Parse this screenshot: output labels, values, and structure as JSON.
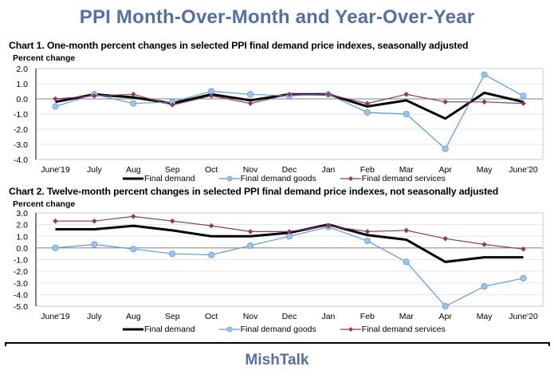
{
  "page": {
    "title": "PPI Month-Over-Month and Year-Over-Year",
    "footer": "MishTalk"
  },
  "colors": {
    "title": "#5470a3",
    "final_demand": "#000000",
    "final_demand_goods": "#5b9bd5",
    "final_demand_goods_marker": "#9dc3ef",
    "final_demand_services": "#8e3a63"
  },
  "chart_data": [
    {
      "type": "line",
      "title": "Chart 1. One-month percent changes in selected PPI final demand price indexes, seasonally adjusted",
      "xlabel": "",
      "ylabel": "Percent change",
      "categories": [
        "June'19",
        "July",
        "Aug",
        "Sep",
        "Oct",
        "Nov",
        "Dec",
        "Jan",
        "Feb",
        "Mar",
        "Apr",
        "May",
        "June'20"
      ],
      "ylim": [
        -4.0,
        2.0
      ],
      "yticks": [
        "2.0",
        "1.0",
        "0.0",
        "-1.0",
        "-2.0",
        "-3.0",
        "-4.0"
      ],
      "grid": true,
      "legend_position": "bottom",
      "series": [
        {
          "name": "Final demand",
          "marker": "none",
          "values": [
            -0.2,
            0.3,
            0.1,
            -0.3,
            0.3,
            -0.1,
            0.3,
            0.3,
            -0.5,
            -0.1,
            -1.3,
            0.4,
            -0.2
          ]
        },
        {
          "name": "Final demand goods",
          "marker": "circle",
          "values": [
            -0.5,
            0.3,
            -0.3,
            -0.2,
            0.5,
            0.3,
            0.2,
            0.3,
            -0.9,
            -1.0,
            -3.3,
            1.6,
            0.2
          ]
        },
        {
          "name": "Final demand services",
          "marker": "diamond",
          "values": [
            0.0,
            0.2,
            0.3,
            -0.4,
            0.2,
            -0.3,
            0.3,
            0.3,
            -0.3,
            0.3,
            -0.2,
            -0.2,
            -0.3
          ]
        }
      ]
    },
    {
      "type": "line",
      "title": "Chart 2. Twelve-month percent changes in selected PPI final demand price indexes, not seasonally adjusted",
      "xlabel": "",
      "ylabel": "Percent change",
      "categories": [
        "June'19",
        "July",
        "Aug",
        "Sep",
        "Oct",
        "Nov",
        "Dec",
        "Jan",
        "Feb",
        "Mar",
        "Apr",
        "May",
        "June'20"
      ],
      "ylim": [
        -5.0,
        3.0
      ],
      "yticks": [
        "3.0",
        "2.0",
        "1.0",
        "0.0",
        "-1.0",
        "-2.0",
        "-3.0",
        "-4.0",
        "-5.0"
      ],
      "grid": true,
      "legend_position": "bottom",
      "series": [
        {
          "name": "Final demand",
          "marker": "none",
          "values": [
            1.6,
            1.6,
            1.9,
            1.5,
            1.0,
            1.0,
            1.3,
            2.0,
            1.1,
            0.7,
            -1.2,
            -0.8,
            -0.8
          ]
        },
        {
          "name": "Final demand goods",
          "marker": "circle",
          "values": [
            0.0,
            0.3,
            -0.1,
            -0.5,
            -0.6,
            0.2,
            1.0,
            1.8,
            0.6,
            -1.2,
            -5.0,
            -3.3,
            -2.6
          ]
        },
        {
          "name": "Final demand services",
          "marker": "diamond",
          "values": [
            2.3,
            2.3,
            2.7,
            2.3,
            1.9,
            1.4,
            1.4,
            1.9,
            1.4,
            1.5,
            0.8,
            0.3,
            -0.1
          ]
        }
      ]
    }
  ]
}
